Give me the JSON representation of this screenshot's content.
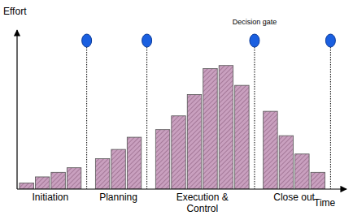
{
  "chart_data": {
    "type": "bar",
    "y_label": "Effort",
    "x_label": "Time",
    "color": "#c9a0bf",
    "ylim": [
      0,
      100
    ],
    "yticks": [],
    "tick_labels": false,
    "gate_label": "Decision gate",
    "phases": [
      {
        "label": "Initiation",
        "values": [
          4,
          8,
          11,
          14
        ]
      },
      {
        "label": "Planning",
        "values": [
          20,
          26,
          34
        ]
      },
      {
        "label": "Execution & Control",
        "values": [
          39,
          48,
          62,
          79,
          81,
          68
        ]
      },
      {
        "label": "Close out",
        "values": [
          51,
          35,
          23,
          11
        ]
      }
    ]
  }
}
